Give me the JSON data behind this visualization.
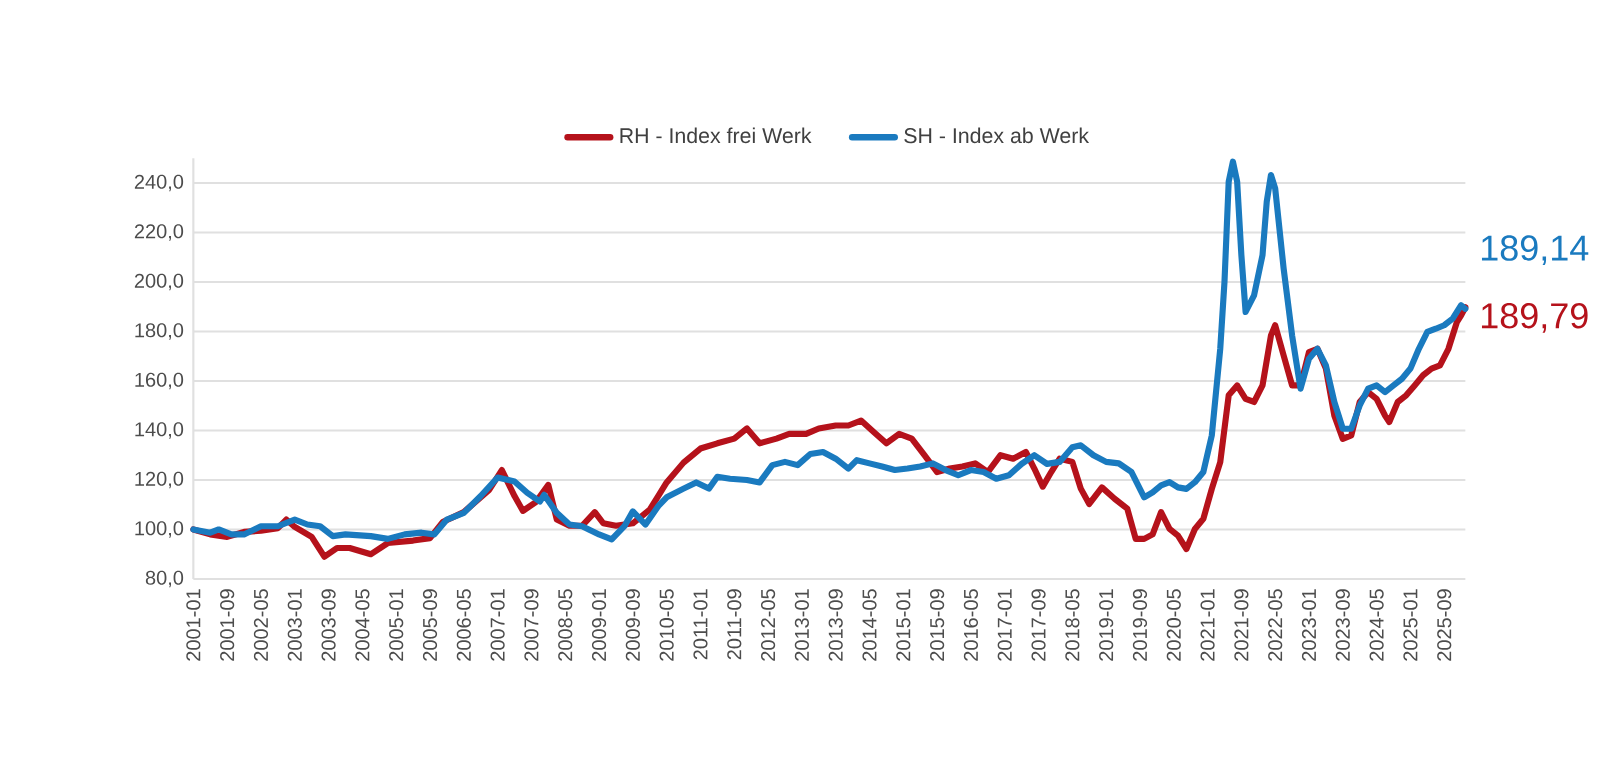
{
  "chart_data": {
    "type": "line",
    "legend": "top",
    "grid": "y",
    "marker": "none",
    "line_style": "solid",
    "xlim": [
      "2001-01",
      "2026-02"
    ],
    "ylim": [
      80,
      250
    ],
    "xticks": [
      "2001-01",
      "2001-09",
      "2002-05",
      "2003-01",
      "2003-09",
      "2004-05",
      "2005-01",
      "2005-09",
      "2006-05",
      "2007-01",
      "2007-09",
      "2008-05",
      "2009-01",
      "2009-09",
      "2010-05",
      "2011-01",
      "2011-09",
      "2012-05",
      "2013-01",
      "2013-09",
      "2014-05",
      "2015-01",
      "2015-09",
      "2016-05",
      "2017-01",
      "2017-09",
      "2018-05",
      "2019-01",
      "2019-09",
      "2020-05",
      "2021-01",
      "2021-09",
      "2022-05",
      "2023-01",
      "2023-09",
      "2024-05",
      "2025-01",
      "2025-09"
    ],
    "yticks": [
      {
        "value": 80,
        "label": "80,0"
      },
      {
        "value": 100,
        "label": "100,0"
      },
      {
        "value": 120,
        "label": "120,0"
      },
      {
        "value": 140,
        "label": "140,0"
      },
      {
        "value": 160,
        "label": "160,0"
      },
      {
        "value": 180,
        "label": "180,0"
      },
      {
        "value": 200,
        "label": "200,0"
      },
      {
        "value": 220,
        "label": "220,0"
      },
      {
        "value": 240,
        "label": "240,0"
      }
    ],
    "series": [
      {
        "name": "RH - Index frei Werk",
        "color": "#b5121b",
        "x": [
          "2001-01",
          "2001-05",
          "2001-09",
          "2002-01",
          "2002-05",
          "2002-09",
          "2002-11",
          "2003-01",
          "2003-05",
          "2003-08",
          "2003-11",
          "2004-02",
          "2004-07",
          "2004-11",
          "2005-05",
          "2005-09",
          "2005-12",
          "2006-05",
          "2006-11",
          "2007-02",
          "2007-05",
          "2007-07",
          "2007-10",
          "2008-01",
          "2008-03",
          "2008-06",
          "2008-09",
          "2008-12",
          "2009-02",
          "2009-05",
          "2009-09",
          "2010-01",
          "2010-03",
          "2010-05",
          "2010-09",
          "2011-01",
          "2011-05",
          "2011-09",
          "2011-12",
          "2012-03",
          "2012-07",
          "2012-10",
          "2013-02",
          "2013-05",
          "2013-09",
          "2013-12",
          "2014-03",
          "2014-06",
          "2014-09",
          "2014-12",
          "2015-03",
          "2015-06",
          "2015-09",
          "2015-12",
          "2016-03",
          "2016-06",
          "2016-09",
          "2016-12",
          "2017-03",
          "2017-06",
          "2017-08",
          "2017-10",
          "2017-12",
          "2018-02",
          "2018-05",
          "2018-07",
          "2018-09",
          "2018-12",
          "2019-03",
          "2019-06",
          "2019-08",
          "2019-10",
          "2019-12",
          "2020-02",
          "2020-04",
          "2020-06",
          "2020-08",
          "2020-10",
          "2020-12",
          "2021-02",
          "2021-04",
          "2021-06",
          "2021-08",
          "2021-10",
          "2021-12",
          "2022-02",
          "2022-04",
          "2022-05",
          "2022-07",
          "2022-09",
          "2022-11",
          "2023-01",
          "2023-03",
          "2023-05",
          "2023-07",
          "2023-09",
          "2023-11",
          "2024-01",
          "2024-03",
          "2024-05",
          "2024-07",
          "2024-08",
          "2024-10",
          "2024-12",
          "2025-02",
          "2025-04",
          "2025-06",
          "2025-08",
          "2025-10",
          "2025-12",
          "2026-01",
          "2026-02"
        ],
        "values": [
          100,
          98,
          97,
          99,
          99.5,
          100.5,
          104,
          101,
          97,
          89,
          92.5,
          92.5,
          90,
          94.5,
          95.5,
          96.5,
          103,
          107,
          116,
          124,
          113.5,
          107.5,
          111,
          118,
          104,
          101.5,
          101.5,
          107,
          102.5,
          101.5,
          102.5,
          108,
          113.5,
          119,
          127,
          132.7,
          134.8,
          136.7,
          140.8,
          134.8,
          136.7,
          138.6,
          138.6,
          140.8,
          142,
          142,
          144,
          139.4,
          134.8,
          138.6,
          136.7,
          130,
          123.2,
          124.6,
          125.4,
          126.7,
          123.2,
          130,
          128.6,
          131.3,
          124.6,
          117.3,
          123.2,
          128.6,
          127.3,
          116.5,
          110.3,
          117,
          112.4,
          108.4,
          96.2,
          96.2,
          98,
          107,
          100.2,
          97.5,
          92.1,
          100.2,
          104.3,
          116.4,
          127.2,
          154.2,
          158.2,
          152.8,
          151.5,
          158.2,
          178.4,
          182.5,
          170.3,
          158.2,
          158.2,
          171.7,
          173,
          165,
          146,
          136.6,
          138,
          151.5,
          155.5,
          152.8,
          146,
          143.4,
          151.5,
          154.2,
          158.2,
          162.3,
          165,
          166.3,
          173,
          183.8,
          186.5,
          189.79
        ]
      },
      {
        "name": "SH - Index ab Werk",
        "color": "#1a7abf",
        "x": [
          "2001-01",
          "2001-05",
          "2001-07",
          "2001-10",
          "2002-01",
          "2002-05",
          "2002-09",
          "2003-01",
          "2003-04",
          "2003-07",
          "2003-10",
          "2004-01",
          "2004-07",
          "2004-11",
          "2005-03",
          "2005-07",
          "2005-10",
          "2006-01",
          "2006-05",
          "2006-09",
          "2007-01",
          "2007-05",
          "2007-08",
          "2007-11",
          "2007-12",
          "2008-03",
          "2008-06",
          "2008-09",
          "2009-01",
          "2009-04",
          "2009-07",
          "2009-09",
          "2009-12",
          "2010-03",
          "2010-05",
          "2010-09",
          "2010-12",
          "2011-03",
          "2011-05",
          "2011-08",
          "2011-12",
          "2012-03",
          "2012-06",
          "2012-09",
          "2012-12",
          "2013-03",
          "2013-06",
          "2013-09",
          "2013-12",
          "2014-02",
          "2014-05",
          "2014-08",
          "2014-11",
          "2015-02",
          "2015-05",
          "2015-08",
          "2015-11",
          "2016-02",
          "2016-05",
          "2016-08",
          "2016-11",
          "2017-02",
          "2017-05",
          "2017-08",
          "2017-11",
          "2018-02",
          "2018-05",
          "2018-07",
          "2018-10",
          "2019-01",
          "2019-04",
          "2019-07",
          "2019-10",
          "2019-12",
          "2020-02",
          "2020-04",
          "2020-06",
          "2020-08",
          "2020-10",
          "2020-12",
          "2021-02",
          "2021-04",
          "2021-05",
          "2021-06",
          "2021-07",
          "2021-08",
          "2021-09",
          "2021-10",
          "2021-12",
          "2022-02",
          "2022-03",
          "2022-04",
          "2022-05",
          "2022-07",
          "2022-09",
          "2022-11",
          "2023-01",
          "2023-03",
          "2023-05",
          "2023-07",
          "2023-09",
          "2023-11",
          "2024-01",
          "2024-03",
          "2024-05",
          "2024-07",
          "2024-09",
          "2024-11",
          "2025-01",
          "2025-03",
          "2025-05",
          "2025-07",
          "2025-09",
          "2025-11",
          "2026-01",
          "2026-02"
        ],
        "values": [
          100,
          98.7,
          100,
          98,
          98,
          101.3,
          101.3,
          104,
          102,
          101.3,
          97.3,
          98,
          97.3,
          96.2,
          98,
          98.7,
          98,
          104,
          106.7,
          113.5,
          121,
          119.4,
          114.8,
          111.3,
          114,
          106.7,
          102,
          101.3,
          98,
          96,
          101.3,
          107.3,
          102,
          109.4,
          113,
          116.5,
          119,
          116.5,
          121.3,
          120.5,
          120,
          119,
          126,
          127.3,
          126,
          130.5,
          131.3,
          128.6,
          124.6,
          128,
          126.7,
          125.4,
          124,
          124.6,
          125.4,
          126.7,
          124,
          121.9,
          124,
          123.2,
          120.5,
          121.9,
          126.5,
          130,
          126.5,
          127.3,
          133.2,
          134,
          130,
          127.3,
          126.7,
          123.2,
          113,
          115,
          117.8,
          119.1,
          117,
          116.4,
          119.1,
          123.2,
          138,
          173,
          200,
          240.5,
          248.6,
          240.5,
          210.8,
          187.9,
          194.6,
          210.8,
          232.4,
          243.2,
          237.8,
          205.4,
          178.4,
          156.9,
          169,
          173,
          166.3,
          151.5,
          140.7,
          140.7,
          150.1,
          156.9,
          158.2,
          155.5,
          158.2,
          160.9,
          165,
          173,
          179.8,
          181.1,
          182.5,
          185.2,
          190.6,
          189.14
        ]
      }
    ],
    "annotations": [
      {
        "text": "189,14",
        "x": "2026-02",
        "y": 189.14
      },
      {
        "text": "189,79",
        "x": "2026-02",
        "y": 189.79
      }
    ]
  }
}
